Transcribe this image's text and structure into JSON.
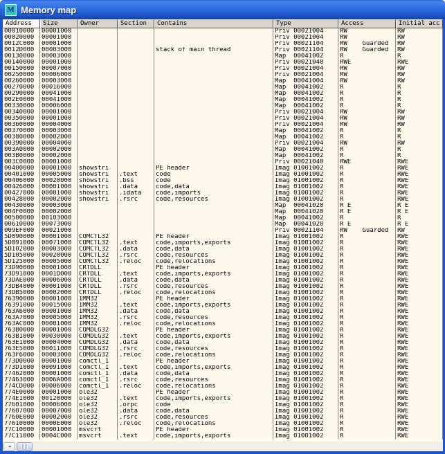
{
  "window": {
    "title": "Memory map",
    "icon_letter": "M"
  },
  "colors": {
    "titlebar_blue": "#2E6BE0",
    "border_blue": "#1E56CE",
    "icon_teal": "#35C4C4",
    "table_background": "#FFF9ED",
    "header_gray": "#D8D4CB",
    "grid_line": "#8A887C"
  },
  "scrollbar": {
    "left_arrow": "◄"
  },
  "table": {
    "columns": [
      {
        "label": "Address",
        "sorted": true
      },
      {
        "label": "Size"
      },
      {
        "label": "Owner"
      },
      {
        "label": "Section"
      },
      {
        "label": "Contains"
      },
      {
        "label": "Type"
      },
      {
        "label": "Access"
      },
      {
        "label": "Initial acc"
      }
    ],
    "rows": [
      [
        "00010000",
        "00001000",
        "",
        "",
        "",
        "Priv 00021004",
        "RW",
        "RW"
      ],
      [
        "00020000",
        "00001000",
        "",
        "",
        "",
        "Priv 00021004",
        "RW",
        "RW"
      ],
      [
        "0012C000",
        "00001000",
        "",
        "",
        "",
        "Priv 00021104",
        "RW    Guarded",
        "RW"
      ],
      [
        "0012D000",
        "00003000",
        "",
        "",
        "stack of main thread",
        "Priv 00021104",
        "RW    Guarded",
        "RW"
      ],
      [
        "00130000",
        "00003000",
        "",
        "",
        "",
        "Map  00041002",
        "R",
        "R"
      ],
      [
        "00140000",
        "00001000",
        "",
        "",
        "",
        "Priv 00021040",
        "RWE",
        "RWE"
      ],
      [
        "00150000",
        "00007000",
        "",
        "",
        "",
        "Priv 00021004",
        "RW",
        "RW"
      ],
      [
        "00250000",
        "00006000",
        "",
        "",
        "",
        "Priv 00021004",
        "RW",
        "RW"
      ],
      [
        "00260000",
        "00003000",
        "",
        "",
        "",
        "Map  00041004",
        "RW",
        "RW"
      ],
      [
        "00270000",
        "00016000",
        "",
        "",
        "",
        "Map  00041002",
        "R",
        "R"
      ],
      [
        "00290000",
        "00041000",
        "",
        "",
        "",
        "Map  00041002",
        "R",
        "R"
      ],
      [
        "002E0000",
        "00041000",
        "",
        "",
        "",
        "Map  00041002",
        "R",
        "R"
      ],
      [
        "00330000",
        "00006000",
        "",
        "",
        "",
        "Map  00041002",
        "R",
        "R"
      ],
      [
        "00340000",
        "00001000",
        "",
        "",
        "",
        "Priv 00021004",
        "RW",
        "RW"
      ],
      [
        "00350000",
        "00001000",
        "",
        "",
        "",
        "Priv 00021004",
        "RW",
        "RW"
      ],
      [
        "00360000",
        "00004000",
        "",
        "",
        "",
        "Priv 00021004",
        "RW",
        "RW"
      ],
      [
        "00370000",
        "00003000",
        "",
        "",
        "",
        "Map  00041002",
        "R",
        "R"
      ],
      [
        "00380000",
        "00002000",
        "",
        "",
        "",
        "Map  00041002",
        "R",
        "R"
      ],
      [
        "00390000",
        "00004000",
        "",
        "",
        "",
        "Priv 00021004",
        "RW",
        "RW"
      ],
      [
        "003A0000",
        "00002000",
        "",
        "",
        "",
        "Map  00041002",
        "R",
        "R"
      ],
      [
        "003B0000",
        "00002000",
        "",
        "",
        "",
        "Map  00041002",
        "R",
        "R"
      ],
      [
        "003C0000",
        "00001000",
        "",
        "",
        "",
        "Priv 00021040",
        "RWE",
        "RWE"
      ],
      [
        "00400000",
        "00001000",
        "showstri",
        "",
        "PE header",
        "Imag 01001002",
        "R",
        "RWE"
      ],
      [
        "00401000",
        "00005000",
        "showstri",
        ".text",
        "code",
        "Imag 01001002",
        "R",
        "RWE"
      ],
      [
        "00406000",
        "00020000",
        "showstri",
        ".bss",
        "code",
        "Imag 01001002",
        "R",
        "RWE"
      ],
      [
        "00426000",
        "00001000",
        "showstri",
        ".data",
        "code,data",
        "Imag 01001002",
        "R",
        "RWE"
      ],
      [
        "00427000",
        "00001000",
        "showstri",
        ".idata",
        "code,imports",
        "Imag 01001002",
        "R",
        "RWE"
      ],
      [
        "00428000",
        "00002000",
        "showstri",
        ".rsrc",
        "code,resources",
        "Imag 01001002",
        "R",
        "RWE"
      ],
      [
        "00430000",
        "00003000",
        "",
        "",
        "",
        "Map  00041020",
        "R E",
        "R E"
      ],
      [
        "004F0000",
        "00002000",
        "",
        "",
        "",
        "Map  00041020",
        "R E",
        "R E"
      ],
      [
        "00500000",
        "00103000",
        "",
        "",
        "",
        "Map  00041002",
        "R",
        "R"
      ],
      [
        "00610000",
        "00073000",
        "",
        "",
        "",
        "Map  00041020",
        "R E",
        "R E"
      ],
      [
        "009EF000",
        "00021000",
        "",
        "",
        "",
        "Priv 00021104",
        "RW    Guarded",
        "RW"
      ],
      [
        "5D090000",
        "00001000",
        "COMCTL32",
        "",
        "PE header",
        "Imag 01001002",
        "R",
        "RWE"
      ],
      [
        "5D091000",
        "00071000",
        "COMCTL32",
        ".text",
        "code,imports,exports",
        "Imag 01001002",
        "R",
        "RWE"
      ],
      [
        "5D102000",
        "00003000",
        "COMCTL32",
        ".data",
        "code,data",
        "Imag 01001002",
        "R",
        "RWE"
      ],
      [
        "5D105000",
        "00020000",
        "COMCTL32",
        ".rsrc",
        "code,resources",
        "Imag 01001002",
        "R",
        "RWE"
      ],
      [
        "5D125000",
        "00005000",
        "COMCTL32",
        ".reloc",
        "code,relocations",
        "Imag 01001002",
        "R",
        "RWE"
      ],
      [
        "73D90000",
        "00001000",
        "CRTDLL",
        "",
        "PE header",
        "Imag 01001002",
        "R",
        "RWE"
      ],
      [
        "73D91000",
        "0001D000",
        "CRTDLL",
        ".text",
        "code,imports,exports",
        "Imag 01001002",
        "R",
        "RWE"
      ],
      [
        "73DAE000",
        "00006000",
        "CRTDLL",
        ".data",
        "code,data",
        "Imag 01001002",
        "R",
        "RWE"
      ],
      [
        "73DB4000",
        "00001000",
        "CRTDLL",
        ".rsrc",
        "code,resources",
        "Imag 01001002",
        "R",
        "RWE"
      ],
      [
        "73DB5000",
        "00002000",
        "CRTDLL",
        ".reloc",
        "code,relocations",
        "Imag 01001002",
        "R",
        "RWE"
      ],
      [
        "76390000",
        "00001000",
        "IMM32",
        "",
        "PE header",
        "Imag 01001002",
        "R",
        "RWE"
      ],
      [
        "76391000",
        "00015000",
        "IMM32",
        ".text",
        "code,imports,exports",
        "Imag 01001002",
        "R",
        "RWE"
      ],
      [
        "763A6000",
        "00001000",
        "IMM32",
        ".data",
        "code,data",
        "Imag 01001002",
        "R",
        "RWE"
      ],
      [
        "763A7000",
        "00005000",
        "IMM32",
        ".rsrc",
        "code,resources",
        "Imag 01001002",
        "R",
        "RWE"
      ],
      [
        "763AC000",
        "00001000",
        "IMM32",
        ".reloc",
        "code,relocations",
        "Imag 01001002",
        "R",
        "RWE"
      ],
      [
        "763B0000",
        "00001000",
        "COMDLG32",
        "",
        "PE header",
        "Imag 01001002",
        "R",
        "RWE"
      ],
      [
        "763B1000",
        "00030000",
        "COMDLG32",
        ".text",
        "code,imports,exports",
        "Imag 01001002",
        "R",
        "RWE"
      ],
      [
        "763E1000",
        "00004000",
        "COMDLG32",
        ".data",
        "code,data",
        "Imag 01001002",
        "R",
        "RWE"
      ],
      [
        "763E5000",
        "00011000",
        "COMDLG32",
        ".rsrc",
        "code,resources",
        "Imag 01001002",
        "R",
        "RWE"
      ],
      [
        "763F6000",
        "00003000",
        "COMDLG32",
        ".reloc",
        "code,relocations",
        "Imag 01001002",
        "R",
        "RWE"
      ],
      [
        "773D0000",
        "00001000",
        "comctl_1",
        "",
        "PE header",
        "Imag 01001002",
        "R",
        "RWE"
      ],
      [
        "773D1000",
        "00091000",
        "comctl_1",
        ".text",
        "code,imports,exports",
        "Imag 01001002",
        "R",
        "RWE"
      ],
      [
        "77462000",
        "00001000",
        "comctl_1",
        ".data",
        "code,data",
        "Imag 01001002",
        "R",
        "RWE"
      ],
      [
        "77463000",
        "0006A000",
        "comctl_1",
        ".rsrc",
        "code,resources",
        "Imag 01001002",
        "R",
        "RWE"
      ],
      [
        "774CD000",
        "00006000",
        "comctl_1",
        ".reloc",
        "code,relocations",
        "Imag 01001002",
        "R",
        "RWE"
      ],
      [
        "774E0000",
        "00001000",
        "ole32",
        "",
        "PE header",
        "Imag 01001002",
        "R",
        "RWE"
      ],
      [
        "774E1000",
        "00120000",
        "ole32",
        ".text",
        "code,imports,exports",
        "Imag 01001002",
        "R",
        "RWE"
      ],
      [
        "77601000",
        "00006000",
        "ole32",
        ".orpc",
        "code",
        "Imag 01001002",
        "R",
        "RWE"
      ],
      [
        "77607000",
        "00007000",
        "ole32",
        ".data",
        "code,data",
        "Imag 01001002",
        "R",
        "RWE"
      ],
      [
        "7760E000",
        "00002000",
        "ole32",
        ".rsrc",
        "code,resources",
        "Imag 01001002",
        "R",
        "RWE"
      ],
      [
        "77610000",
        "0000E000",
        "ole32",
        ".reloc",
        "code,relocations",
        "Imag 01001002",
        "R",
        "RWE"
      ],
      [
        "77C10000",
        "00001000",
        "msvcrt",
        "",
        "PE header",
        "Imag 01001002",
        "R",
        "RWE"
      ],
      [
        "77C11000",
        "0004C000",
        "msvcrt",
        ".text",
        "code,imports,exports",
        "Imag 01001002",
        "R",
        "RWE"
      ]
    ]
  }
}
